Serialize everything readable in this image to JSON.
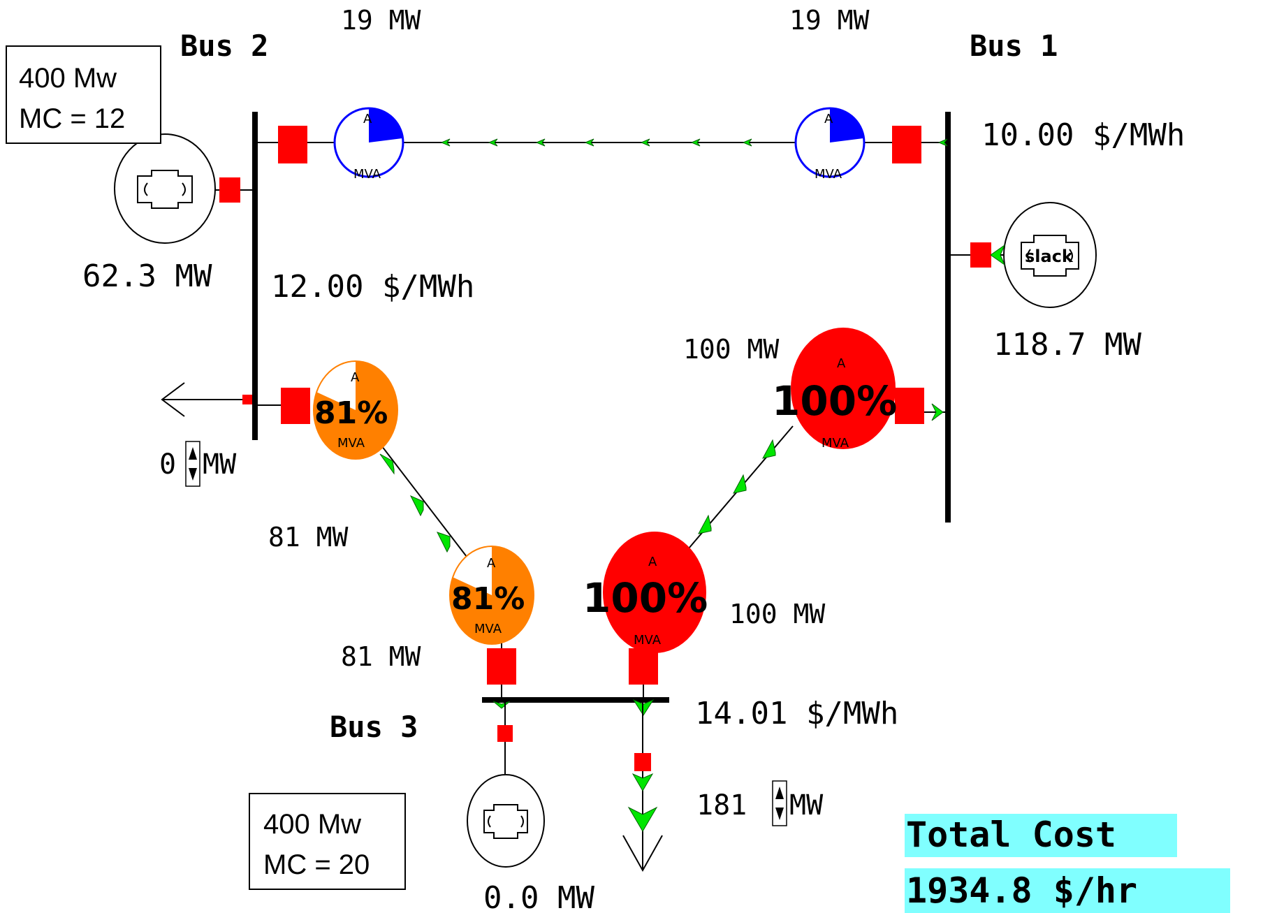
{
  "buses": {
    "bus1": {
      "label": "Bus 1",
      "price": "10.00 $/MWh"
    },
    "bus2": {
      "label": "Bus 2",
      "price": "12.00 $/MWh"
    },
    "bus3": {
      "label": "Bus 3",
      "price": "14.01 $/MWh"
    }
  },
  "generators": {
    "gen1": {
      "output": "118.7 MW",
      "tag": "slack"
    },
    "gen2": {
      "output": "62.3 MW",
      "info_line1": "400 Mw",
      "info_line2": "MC = 12"
    },
    "gen3": {
      "output": "0.0 MW",
      "info_line1": "400 Mw",
      "info_line2": "MC = 20"
    }
  },
  "loads": {
    "bus2_load": {
      "value": "0",
      "unit": "MW"
    },
    "bus3_load": {
      "value": "181",
      "unit": "MW"
    }
  },
  "lines": {
    "line_1_2": {
      "flow_bus2_end": "19 MW",
      "flow_bus1_end": "19 MW",
      "percent": 0.23
    },
    "line_2_3": {
      "flow_bus2_end": "81 MW",
      "flow_bus3_end": "81 MW",
      "percent_label": "81%",
      "percent": 0.81
    },
    "line_1_3": {
      "flow_bus1_end": "100 MW",
      "flow_bus3_end": "100 MW",
      "percent_label": "100%",
      "percent": 1.0
    }
  },
  "pie_labels": {
    "top": "A",
    "bottom": "MVA"
  },
  "total_cost": {
    "label": "Total Cost",
    "value": "1934.8 $/hr"
  },
  "colors": {
    "breaker": "#ff0000",
    "arrow": "#00e600",
    "line_low": "#0000ff",
    "line_81": "#ff8000",
    "line_100": "#ff0000",
    "cost_bg": "#80ffff"
  }
}
